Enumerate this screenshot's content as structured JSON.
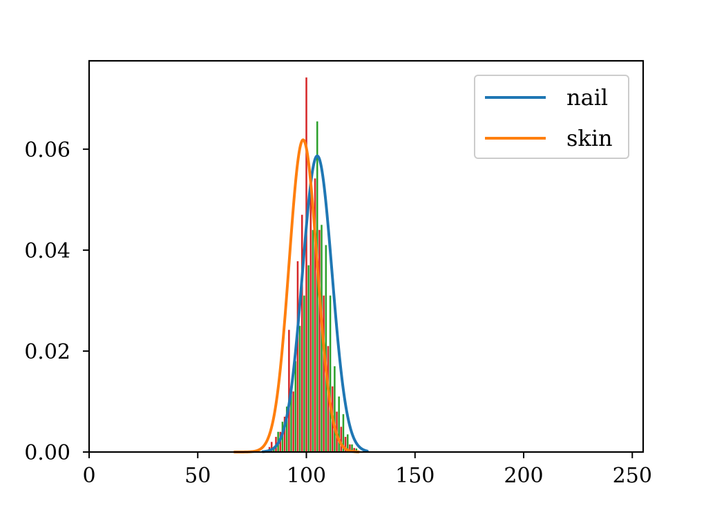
{
  "chart_data": {
    "type": "line",
    "title": "",
    "xlabel": "",
    "ylabel": "",
    "xlim": [
      0,
      255
    ],
    "ylim": [
      0,
      0.0775
    ],
    "x_ticks": [
      0,
      50,
      100,
      150,
      200,
      250
    ],
    "x_tick_labels": [
      "0",
      "50",
      "100",
      "150",
      "200",
      "250"
    ],
    "y_ticks": [
      0.0,
      0.02,
      0.04,
      0.06
    ],
    "y_tick_labels": [
      "0.00",
      "0.02",
      "0.04",
      "0.06"
    ],
    "grid": false,
    "legend_position": "top-right",
    "series": [
      {
        "name": "nail",
        "type": "line",
        "color": "#1f77b4",
        "distribution": "normal",
        "mean": 105,
        "std": 6.8,
        "x_range": [
          80,
          128
        ]
      },
      {
        "name": "skin",
        "type": "line",
        "color": "#ff7f0e",
        "distribution": "normal",
        "mean": 98.5,
        "std": 6.45,
        "x_range": [
          67,
          124
        ]
      }
    ],
    "histograms": [
      {
        "color": "#2ca02c",
        "bar_width": 0.8,
        "bars": [
          [
            85,
            0.001
          ],
          [
            87,
            0.004
          ],
          [
            89,
            0.006
          ],
          [
            91,
            0.009
          ],
          [
            93,
            0.013
          ],
          [
            95,
            0.018
          ],
          [
            97,
            0.025
          ],
          [
            99,
            0.031
          ],
          [
            101,
            0.037
          ],
          [
            103,
            0.044
          ],
          [
            105,
            0.0655
          ],
          [
            107,
            0.045
          ],
          [
            109,
            0.041
          ],
          [
            111,
            0.031
          ],
          [
            113,
            0.017
          ],
          [
            115,
            0.011
          ],
          [
            117,
            0.0075
          ],
          [
            119,
            0.0035
          ],
          [
            121,
            0.0015
          ],
          [
            123,
            0.0007
          ]
        ]
      },
      {
        "color": "#d62728",
        "bar_width": 0.8,
        "bars": [
          [
            83,
            0.001
          ],
          [
            84,
            0.002
          ],
          [
            86,
            0.003
          ],
          [
            88,
            0.004
          ],
          [
            90,
            0.007
          ],
          [
            92,
            0.0242
          ],
          [
            94,
            0.012
          ],
          [
            96,
            0.0378
          ],
          [
            98,
            0.047
          ],
          [
            100,
            0.0742
          ],
          [
            102,
            0.052
          ],
          [
            104,
            0.0542
          ],
          [
            106,
            0.044
          ],
          [
            108,
            0.031
          ],
          [
            110,
            0.021
          ],
          [
            112,
            0.013
          ],
          [
            114,
            0.008
          ],
          [
            116,
            0.005
          ],
          [
            118,
            0.003
          ],
          [
            120,
            0.0015
          ],
          [
            122,
            0.0008
          ]
        ]
      }
    ]
  }
}
